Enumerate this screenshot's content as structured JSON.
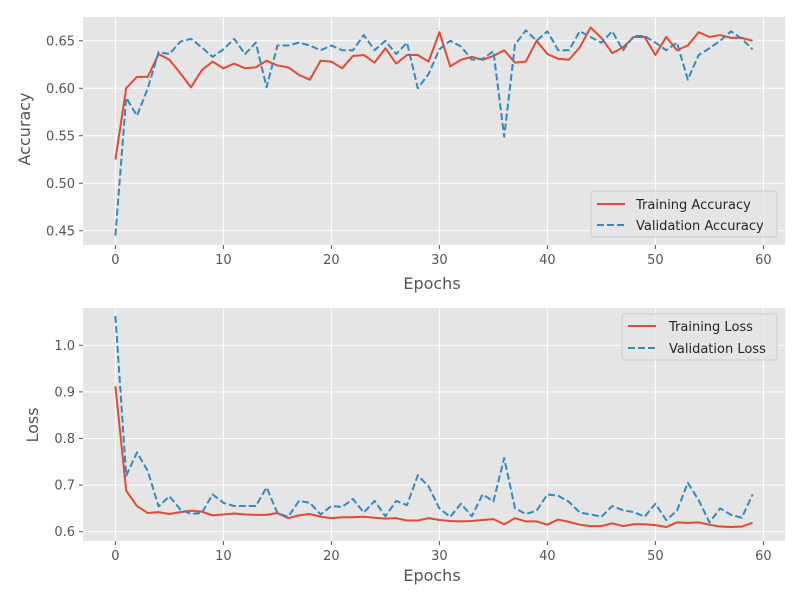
{
  "colors": {
    "background": "#ffffff",
    "plot_area": "#e5e5e5",
    "grid": "#ffffff",
    "training": "#e24a33",
    "validation": "#348abd",
    "tick_text": "#555555"
  },
  "chart_data": [
    {
      "type": "line",
      "title": "",
      "xlabel": "Epochs",
      "ylabel": "Accuracy",
      "xlim": [
        -3,
        62
      ],
      "ylim": [
        0.435,
        0.675
      ],
      "xticks": [
        0,
        10,
        20,
        30,
        40,
        50,
        60
      ],
      "yticks": [
        0.45,
        0.5,
        0.55,
        0.6,
        0.65
      ],
      "ytick_format": 2,
      "grid": true,
      "legend_position": "lower-right",
      "x": [
        0,
        1,
        2,
        3,
        4,
        5,
        6,
        7,
        8,
        9,
        10,
        11,
        12,
        13,
        14,
        15,
        16,
        17,
        18,
        19,
        20,
        21,
        22,
        23,
        24,
        25,
        26,
        27,
        28,
        29,
        30,
        31,
        32,
        33,
        34,
        35,
        36,
        37,
        38,
        39,
        40,
        41,
        42,
        43,
        44,
        45,
        46,
        47,
        48,
        49,
        50,
        51,
        52,
        53,
        54,
        55,
        56,
        57,
        58,
        59
      ],
      "series": [
        {
          "name": "Training Accuracy",
          "style": "solid",
          "color": "#e24a33",
          "values": [
            0.525,
            0.6,
            0.612,
            0.612,
            0.636,
            0.63,
            0.616,
            0.601,
            0.619,
            0.628,
            0.621,
            0.626,
            0.621,
            0.622,
            0.629,
            0.624,
            0.622,
            0.614,
            0.609,
            0.629,
            0.628,
            0.621,
            0.634,
            0.635,
            0.627,
            0.642,
            0.626,
            0.635,
            0.635,
            0.628,
            0.659,
            0.623,
            0.63,
            0.633,
            0.63,
            0.634,
            0.64,
            0.627,
            0.628,
            0.65,
            0.636,
            0.631,
            0.63,
            0.643,
            0.664,
            0.653,
            0.637,
            0.643,
            0.654,
            0.654,
            0.635,
            0.654,
            0.64,
            0.645,
            0.659,
            0.654,
            0.656,
            0.653,
            0.653,
            0.65
          ]
        },
        {
          "name": "Validation Accuracy",
          "style": "dashed",
          "color": "#348abd",
          "values": [
            0.445,
            0.59,
            0.571,
            0.6,
            0.638,
            0.636,
            0.649,
            0.652,
            0.643,
            0.633,
            0.641,
            0.652,
            0.636,
            0.648,
            0.601,
            0.645,
            0.645,
            0.648,
            0.645,
            0.64,
            0.645,
            0.64,
            0.64,
            0.656,
            0.64,
            0.65,
            0.636,
            0.648,
            0.6,
            0.615,
            0.641,
            0.65,
            0.644,
            0.63,
            0.631,
            0.639,
            0.549,
            0.646,
            0.661,
            0.65,
            0.66,
            0.64,
            0.64,
            0.66,
            0.654,
            0.648,
            0.66,
            0.64,
            0.655,
            0.655,
            0.648,
            0.64,
            0.648,
            0.609,
            0.635,
            0.642,
            0.65,
            0.66,
            0.652,
            0.641
          ]
        }
      ]
    },
    {
      "type": "line",
      "title": "",
      "xlabel": "Epochs",
      "ylabel": "Loss",
      "xlim": [
        -3,
        62
      ],
      "ylim": [
        0.58,
        1.08
      ],
      "xticks": [
        0,
        10,
        20,
        30,
        40,
        50,
        60
      ],
      "yticks": [
        0.6,
        0.7,
        0.8,
        0.9,
        1.0
      ],
      "ytick_format": 1,
      "grid": true,
      "legend_position": "upper-right",
      "x": [
        0,
        1,
        2,
        3,
        4,
        5,
        6,
        7,
        8,
        9,
        10,
        11,
        12,
        13,
        14,
        15,
        16,
        17,
        18,
        19,
        20,
        21,
        22,
        23,
        24,
        25,
        26,
        27,
        28,
        29,
        30,
        31,
        32,
        33,
        34,
        35,
        36,
        37,
        38,
        39,
        40,
        41,
        42,
        43,
        44,
        45,
        46,
        47,
        48,
        49,
        50,
        51,
        52,
        53,
        54,
        55,
        56,
        57,
        58,
        59
      ],
      "series": [
        {
          "name": "Training Loss",
          "style": "solid",
          "color": "#e24a33",
          "values": [
            0.912,
            0.688,
            0.655,
            0.64,
            0.642,
            0.638,
            0.642,
            0.645,
            0.643,
            0.635,
            0.637,
            0.639,
            0.637,
            0.636,
            0.636,
            0.64,
            0.629,
            0.635,
            0.638,
            0.632,
            0.629,
            0.631,
            0.631,
            0.632,
            0.63,
            0.628,
            0.629,
            0.624,
            0.624,
            0.629,
            0.625,
            0.623,
            0.622,
            0.623,
            0.625,
            0.627,
            0.616,
            0.629,
            0.622,
            0.622,
            0.615,
            0.626,
            0.621,
            0.615,
            0.612,
            0.612,
            0.618,
            0.612,
            0.616,
            0.616,
            0.614,
            0.61,
            0.62,
            0.619,
            0.62,
            0.615,
            0.611,
            0.61,
            0.611,
            0.619
          ]
        },
        {
          "name": "Validation Loss",
          "style": "dashed",
          "color": "#348abd",
          "values": [
            1.063,
            0.72,
            0.77,
            0.73,
            0.654,
            0.676,
            0.648,
            0.638,
            0.64,
            0.68,
            0.662,
            0.655,
            0.655,
            0.655,
            0.695,
            0.64,
            0.632,
            0.666,
            0.662,
            0.637,
            0.655,
            0.653,
            0.67,
            0.641,
            0.666,
            0.633,
            0.666,
            0.657,
            0.721,
            0.697,
            0.65,
            0.632,
            0.66,
            0.633,
            0.68,
            0.665,
            0.758,
            0.65,
            0.638,
            0.645,
            0.68,
            0.677,
            0.664,
            0.641,
            0.637,
            0.632,
            0.655,
            0.646,
            0.642,
            0.632,
            0.66,
            0.625,
            0.645,
            0.705,
            0.668,
            0.62,
            0.65,
            0.636,
            0.63,
            0.68
          ]
        }
      ]
    }
  ]
}
